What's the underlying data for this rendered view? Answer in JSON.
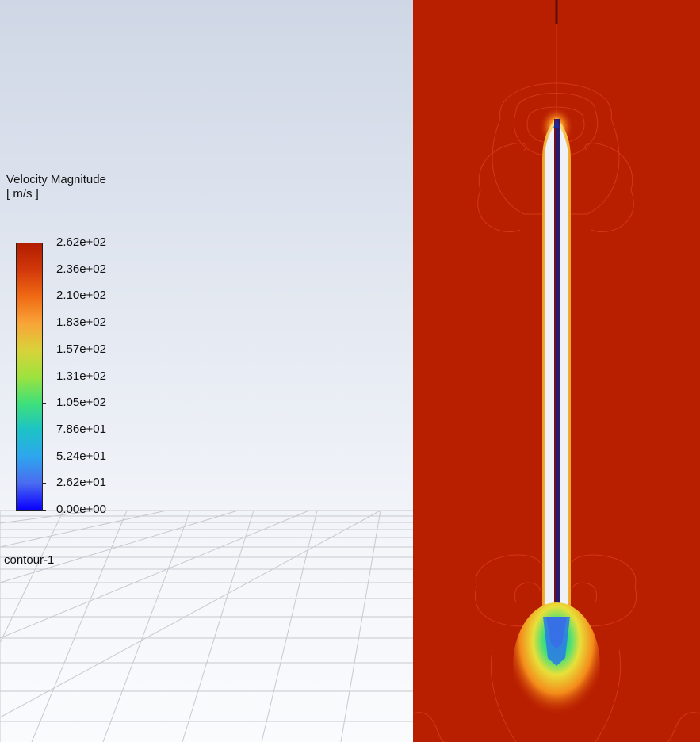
{
  "legend": {
    "title": "Velocity Magnitude",
    "units": "[ m/s ]",
    "ticks": [
      "2.62e+02",
      "2.36e+02",
      "2.10e+02",
      "1.83e+02",
      "1.57e+02",
      "1.31e+02",
      "1.05e+02",
      "7.86e+01",
      "5.24e+01",
      "2.62e+01",
      "0.00e+00"
    ],
    "colors": [
      "#b21d00",
      "#d2380a",
      "#f06a14",
      "#f9a438",
      "#d9d23a",
      "#9ee23d",
      "#3fe07a",
      "#1cc3c6",
      "#2ea6ee",
      "#4a6cf0",
      "#0a00ff"
    ]
  },
  "contour_label": "contour-1"
}
